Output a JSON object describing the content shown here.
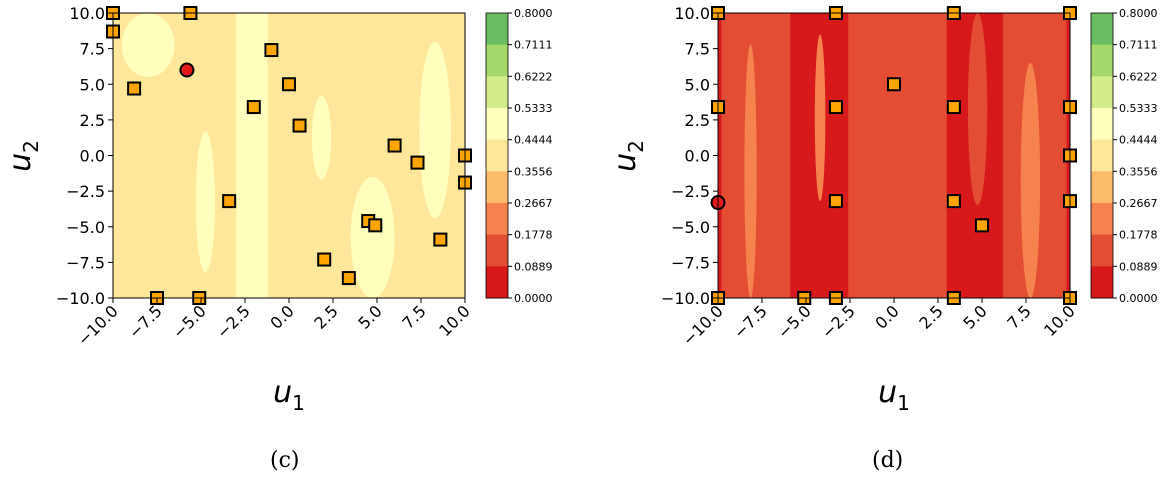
{
  "panels": [
    {
      "caption": "(c)",
      "chart_data": {
        "type": "heatmap",
        "xlabel_base": "u",
        "xlabel_sub": "1",
        "ylabel_base": "u",
        "ylabel_sub": "2",
        "xlim": [
          -10,
          10
        ],
        "ylim": [
          -10,
          10
        ],
        "xticks": [
          "−10.0",
          "−7.5",
          "−5.0",
          "−2.5",
          "0.0",
          "2.5",
          "5.0",
          "7.5",
          "10.0"
        ],
        "yticks": [
          "10.0",
          "7.5",
          "5.0",
          "2.5",
          "0.0",
          "−2.5",
          "−5.0",
          "−7.5",
          "−10.0"
        ],
        "contour_levels": [
          "0.8000",
          "0.7111",
          "0.6222",
          "0.5333",
          "0.4444",
          "0.3556",
          "0.2667",
          "0.1778",
          "0.0889",
          "0.0000"
        ],
        "background_level_range": [
          0.3556,
          0.4444
        ],
        "regions": [
          {
            "level_range": [
              0.4444,
              0.5333
            ],
            "x": [
              -9.5,
              -6.5
            ],
            "y": [
              5.5,
              10.0
            ]
          },
          {
            "level_range": [
              0.4444,
              0.5333
            ],
            "x": [
              -5.3,
              -4.2
            ],
            "y": [
              -8.2,
              1.7
            ]
          },
          {
            "level_range": [
              0.4444,
              0.5333
            ],
            "x": [
              -3.0,
              -1.2
            ],
            "y": [
              -10.0,
              10.0
            ]
          },
          {
            "level_range": [
              0.4444,
              0.5333
            ],
            "x": [
              1.3,
              2.4
            ],
            "y": [
              -1.7,
              4.2
            ]
          },
          {
            "level_range": [
              0.4444,
              0.5333
            ],
            "x": [
              3.5,
              6.0
            ],
            "y": [
              -10.0,
              -1.5
            ]
          },
          {
            "level_range": [
              0.4444,
              0.5333
            ],
            "x": [
              7.4,
              9.2
            ],
            "y": [
              -4.4,
              8.0
            ]
          }
        ],
        "points": {
          "squares": [
            {
              "x": -10.0,
              "y": 10.0
            },
            {
              "x": -10.0,
              "y": 8.7
            },
            {
              "x": -5.6,
              "y": 10.0
            },
            {
              "x": -1.0,
              "y": 7.4
            },
            {
              "x": 0.0,
              "y": 5.0
            },
            {
              "x": -8.8,
              "y": 4.7
            },
            {
              "x": -2.0,
              "y": 3.4
            },
            {
              "x": 0.6,
              "y": 2.1
            },
            {
              "x": 6.0,
              "y": 0.7
            },
            {
              "x": 7.3,
              "y": -0.5
            },
            {
              "x": 10.0,
              "y": 0.0
            },
            {
              "x": 10.0,
              "y": -1.9
            },
            {
              "x": -3.4,
              "y": -3.2
            },
            {
              "x": 4.5,
              "y": -4.6
            },
            {
              "x": 4.9,
              "y": -4.9
            },
            {
              "x": 8.6,
              "y": -5.9
            },
            {
              "x": 2.0,
              "y": -7.3
            },
            {
              "x": 3.4,
              "y": -8.6
            },
            {
              "x": -7.5,
              "y": -10.0
            },
            {
              "x": -5.1,
              "y": -10.0
            }
          ],
          "circles": [
            {
              "x": -5.8,
              "y": 6.0
            }
          ]
        }
      }
    },
    {
      "caption": "(d)",
      "chart_data": {
        "type": "heatmap",
        "xlabel_base": "u",
        "xlabel_sub": "1",
        "ylabel_base": "u",
        "ylabel_sub": "2",
        "xlim": [
          -10,
          10
        ],
        "ylim": [
          -10,
          10
        ],
        "xticks": [
          "−10.0",
          "−7.5",
          "−5.0",
          "−2.5",
          "0.0",
          "2.5",
          "5.0",
          "7.5",
          "10.0"
        ],
        "yticks": [
          "10.0",
          "7.5",
          "5.0",
          "2.5",
          "0.0",
          "−2.5",
          "−5.0",
          "−7.5",
          "−10.0"
        ],
        "contour_levels": [
          "0.8000",
          "0.7111",
          "0.6222",
          "0.5333",
          "0.4444",
          "0.3556",
          "0.2667",
          "0.1778",
          "0.0889",
          "0.0000"
        ],
        "background_level_range": [
          0.0,
          0.0889
        ],
        "regions": [
          {
            "level_range": [
              0.0889,
              0.1778
            ],
            "x": [
              -10.0,
              -10.0
            ],
            "y": [
              -10.0,
              10.0
            ]
          },
          {
            "level_range": [
              0.0889,
              0.1778
            ],
            "x": [
              -9.8,
              -5.9
            ],
            "y": [
              -10.0,
              10.0
            ]
          },
          {
            "level_range": [
              0.0889,
              0.1778
            ],
            "x": [
              -2.6,
              3.0
            ],
            "y": [
              -10.0,
              10.0
            ]
          },
          {
            "level_range": [
              0.0889,
              0.1778
            ],
            "x": [
              4.2,
              5.3
            ],
            "y": [
              -3.5,
              10.0
            ]
          },
          {
            "level_range": [
              0.0889,
              0.1778
            ],
            "x": [
              6.2,
              9.8
            ],
            "y": [
              -10.0,
              10.0
            ]
          },
          {
            "level_range": [
              0.1778,
              0.2667
            ],
            "x": [
              -8.5,
              -7.8
            ],
            "y": [
              -10.0,
              7.8
            ]
          },
          {
            "level_range": [
              0.1778,
              0.2667
            ],
            "x": [
              -4.5,
              -3.9
            ],
            "y": [
              -3.2,
              8.5
            ]
          },
          {
            "level_range": [
              0.1778,
              0.2667
            ],
            "x": [
              7.2,
              8.3
            ],
            "y": [
              -10.0,
              6.5
            ]
          }
        ],
        "points": {
          "squares": [
            {
              "x": -10.0,
              "y": 10.0
            },
            {
              "x": -3.3,
              "y": 10.0
            },
            {
              "x": 3.4,
              "y": 10.0
            },
            {
              "x": 10.0,
              "y": 10.0
            },
            {
              "x": 0.0,
              "y": 5.0
            },
            {
              "x": -10.0,
              "y": 3.4
            },
            {
              "x": -3.3,
              "y": 3.4
            },
            {
              "x": 3.4,
              "y": 3.4
            },
            {
              "x": 10.0,
              "y": 3.4
            },
            {
              "x": 10.0,
              "y": 0.0
            },
            {
              "x": -3.3,
              "y": -3.2
            },
            {
              "x": 3.4,
              "y": -3.2
            },
            {
              "x": 10.0,
              "y": -3.2
            },
            {
              "x": 5.0,
              "y": -4.9
            },
            {
              "x": -10.0,
              "y": -10.0
            },
            {
              "x": -5.1,
              "y": -10.0
            },
            {
              "x": -3.3,
              "y": -10.0
            },
            {
              "x": 3.4,
              "y": -10.0
            },
            {
              "x": 10.0,
              "y": -10.0
            }
          ],
          "circles": [
            {
              "x": -10.0,
              "y": -3.3
            }
          ]
        }
      }
    }
  ],
  "colors": {
    "levels": [
      "#d7191c",
      "#e34d33",
      "#f6834d",
      "#fdbb6c",
      "#fee69a",
      "#fefebd",
      "#d4ed8b",
      "#a5d86a",
      "#6abd62",
      "#1a9641"
    ],
    "square_fill": "#ffa500",
    "circle_fill": "#e31a1c",
    "marker_edge": "#000000"
  }
}
